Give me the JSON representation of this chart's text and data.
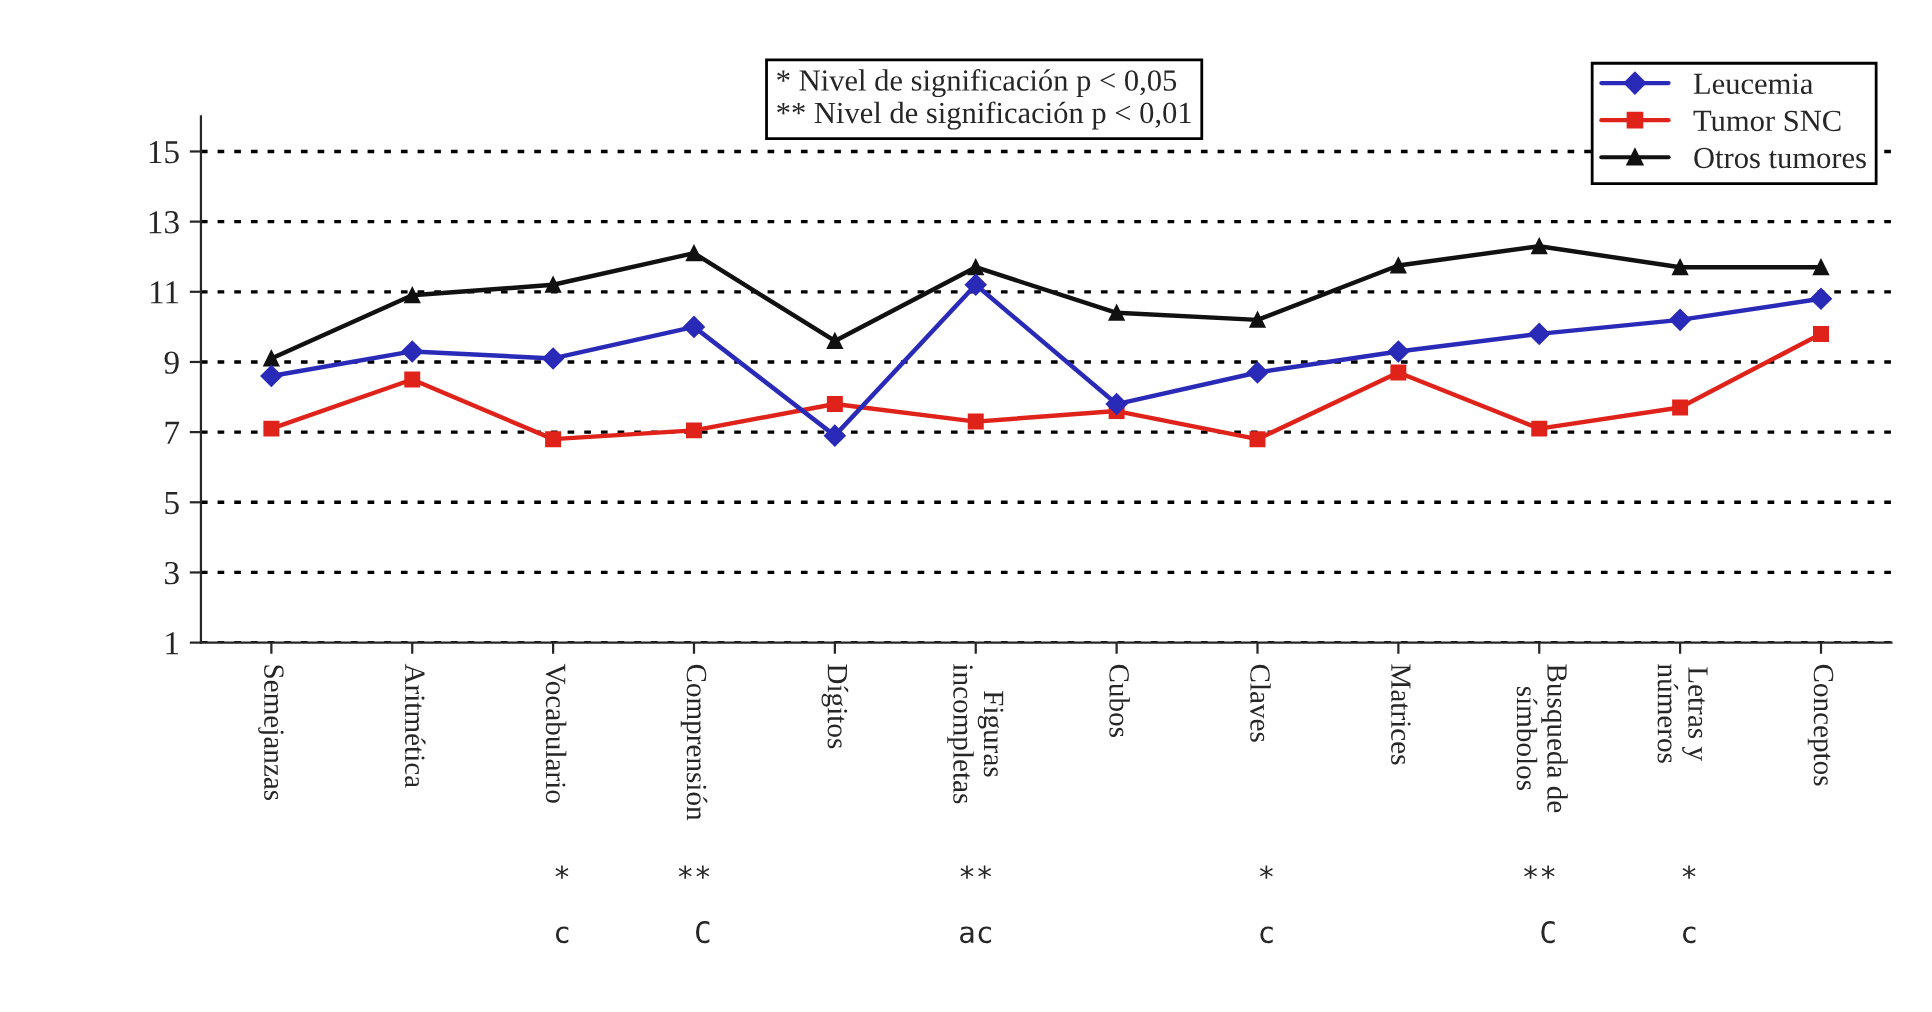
{
  "chart_data": {
    "type": "line",
    "categories": [
      "Semejanzas",
      "Aritmética",
      "Vocabulario",
      "Comprensión",
      "Dígitos",
      "Figuras\nincompletas",
      "Cubos",
      "Claves",
      "Matrices",
      "Busqueda de\nsímbolos",
      "Letras y\nnúmeros",
      "Conceptos"
    ],
    "series": [
      {
        "name": "Leucemia",
        "color": "#2a2ab8",
        "marker": "diamond",
        "values": [
          8.6,
          9.3,
          9.1,
          10.0,
          6.9,
          11.2,
          7.8,
          8.7,
          9.3,
          9.8,
          10.2,
          10.8
        ]
      },
      {
        "name": "Tumor SNC",
        "color": "#e0231a",
        "marker": "square",
        "values": [
          7.1,
          8.5,
          6.8,
          7.05,
          7.8,
          7.3,
          7.6,
          6.8,
          8.7,
          7.1,
          7.7,
          9.8
        ]
      },
      {
        "name": "Otros tumores",
        "color": "#111111",
        "marker": "triangle",
        "values": [
          9.1,
          10.9,
          11.2,
          12.1,
          9.6,
          11.7,
          10.4,
          10.2,
          11.75,
          12.3,
          11.7,
          11.7
        ]
      }
    ],
    "ylim": [
      1,
      16
    ],
    "yticks": [
      1,
      3,
      5,
      7,
      9,
      11,
      13,
      15
    ],
    "grid": "y",
    "legend": "top right",
    "line_style": "solid",
    "annotations": [
      "* Nivel de significación p < 0,05\n** Nivel de significación p < 0,01",
      "                    *      **              **               *              **       *",
      "                    c       C              ac               c               C       c"
    ]
  }
}
